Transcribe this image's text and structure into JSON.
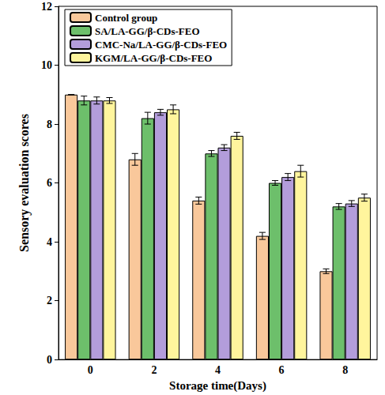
{
  "chart_data": {
    "type": "bar",
    "x_label": "Storage time(Days)",
    "y_label": "Sensory evaluation scores",
    "categories": [
      "0",
      "2",
      "4",
      "6",
      "8"
    ],
    "series": [
      {
        "name": "Control group",
        "color": "#F9C89B",
        "values": [
          9.0,
          6.8,
          5.4,
          4.2,
          3.0
        ],
        "errors": [
          0.0,
          0.2,
          0.12,
          0.12,
          0.08
        ]
      },
      {
        "name": "SA/LA-GG/β-CDs-FEO",
        "color": "#6DBF6B",
        "values": [
          8.8,
          8.2,
          7.0,
          6.0,
          5.2
        ],
        "errors": [
          0.15,
          0.2,
          0.1,
          0.08,
          0.1
        ]
      },
      {
        "name": "CMC-Na/LA-GG/β-CDs-FEO",
        "color": "#B39DDB",
        "values": [
          8.8,
          8.4,
          7.2,
          6.2,
          5.3
        ],
        "errors": [
          0.12,
          0.1,
          0.1,
          0.12,
          0.1
        ]
      },
      {
        "name": "KGM/LA-GG/β-CDs-FEO",
        "color": "#FFF59D",
        "values": [
          8.8,
          8.5,
          7.6,
          6.4,
          5.5
        ],
        "errors": [
          0.1,
          0.15,
          0.12,
          0.2,
          0.12
        ]
      }
    ],
    "ylim": [
      0,
      12
    ],
    "yticks": [
      0,
      2,
      4,
      6,
      8,
      10,
      12
    ],
    "legend": "upper left",
    "grid": false
  }
}
